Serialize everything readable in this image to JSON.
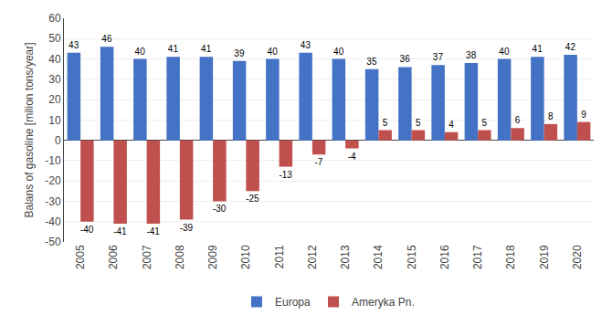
{
  "chart_data": {
    "type": "bar",
    "categories": [
      "2005",
      "2006",
      "2007",
      "2008",
      "2009",
      "2010",
      "2011",
      "2012",
      "2013",
      "2014",
      "2015",
      "2016",
      "2017",
      "2018",
      "2019",
      "2020"
    ],
    "series": [
      {
        "name": "Europa",
        "color": "#4472C4",
        "values": [
          43,
          46,
          40,
          41,
          41,
          39,
          40,
          43,
          40,
          35,
          36,
          37,
          38,
          40,
          41,
          42
        ]
      },
      {
        "name": "Ameryka Pn.",
        "color": "#C0504D",
        "values": [
          -40,
          -41,
          -41,
          -39,
          -30,
          -25,
          -13,
          -7,
          -4,
          5,
          5,
          4,
          5,
          6,
          8,
          9
        ]
      }
    ],
    "ylabel": "Balans of gasoline [milion tons/year]",
    "ylim": [
      -50,
      60
    ],
    "yticks": [
      -50,
      -40,
      -30,
      -20,
      -10,
      0,
      10,
      20,
      30,
      40,
      50,
      60
    ],
    "grid": true,
    "legend": "bottom",
    "data_labels": true
  }
}
